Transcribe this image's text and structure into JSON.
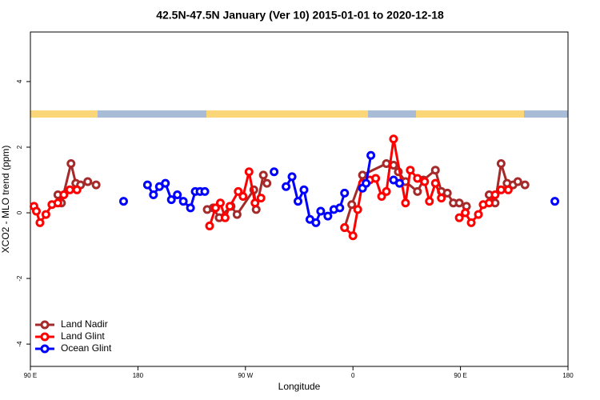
{
  "chart_data": {
    "type": "line",
    "title": "42.5N-47.5N January (Ver 10)   2015-01-01 to 2020-12-18",
    "xlabel": "Longitude",
    "ylabel": "XCO2 - MLO trend (ppm)",
    "xlim": [
      90,
      540
    ],
    "ylim": [
      -4.68,
      5.51
    ],
    "xticks": [
      {
        "value": 90,
        "label": "90 E"
      },
      180,
      {
        "value": 270,
        "label": "90 W"
      },
      {
        "value": 360,
        "label": "0"
      },
      {
        "value": 450,
        "label": "90 E"
      },
      {
        "value": 540,
        "label": "180"
      }
    ],
    "yticks": [
      -4,
      -2,
      0,
      2,
      4
    ],
    "legend": "bottom-left",
    "series": [
      {
        "name": "Land Nadir",
        "color": "#a52a2a",
        "x": [
          113,
          116,
          124,
          128,
          132,
          138,
          145,
          null,
          238,
          243,
          248,
          258,
          263,
          277,
          279,
          285,
          288,
          null,
          353,
          359,
          368,
          388,
          394,
          398,
          404,
          414,
          419,
          429,
          434,
          439,
          444,
          449,
          455,
          null,
          474,
          479,
          484,
          489,
          494,
          498,
          504
        ],
        "values": [
          0.55,
          0.3,
          1.5,
          0.9,
          0.85,
          0.95,
          0.85,
          null,
          0.1,
          0.15,
          -0.15,
          0.2,
          -0.05,
          0.7,
          0.1,
          1.15,
          0.9,
          null,
          -0.45,
          0.25,
          1.15,
          1.5,
          1.45,
          1.25,
          0.95,
          0.65,
          1.0,
          1.3,
          0.65,
          0.6,
          0.3,
          0.3,
          0.2,
          null,
          0.55,
          0.3,
          1.5,
          0.9,
          0.85,
          0.95,
          0.85
        ]
      },
      {
        "name": "Land Glint",
        "color": "#ff0000",
        "x": [
          93,
          95,
          98,
          103,
          108,
          113,
          118,
          123,
          129,
          null,
          240,
          245,
          249,
          253,
          257,
          264,
          268,
          273,
          278,
          283,
          null,
          353,
          360,
          364,
          368,
          374,
          379,
          384,
          388,
          394,
          404,
          408,
          414,
          420,
          424,
          429,
          434,
          null,
          449,
          454,
          459,
          465,
          469,
          474,
          479,
          484,
          490
        ],
        "values": [
          0.2,
          0.05,
          -0.3,
          -0.05,
          0.25,
          0.3,
          0.55,
          0.7,
          0.7,
          null,
          -0.4,
          0.15,
          0.3,
          -0.15,
          0.2,
          0.65,
          0.5,
          1.25,
          0.3,
          0.45,
          null,
          -0.45,
          -0.7,
          0.1,
          0.9,
          1.0,
          1.05,
          0.5,
          0.65,
          2.25,
          0.3,
          1.3,
          1.05,
          0.95,
          0.35,
          0.9,
          0.45,
          null,
          -0.15,
          0.0,
          -0.3,
          -0.05,
          0.25,
          0.3,
          0.55,
          0.7,
          0.7
        ]
      },
      {
        "name": "Ocean Glint",
        "color": "#0000ff",
        "x": [
          168,
          null,
          188,
          193,
          198,
          203,
          208,
          213,
          218,
          224,
          228,
          232,
          236,
          null,
          294,
          null,
          304,
          309,
          314,
          319,
          324,
          329,
          333,
          339,
          344,
          349,
          353,
          null,
          368,
          371,
          375,
          null,
          394,
          399,
          null,
          529
        ],
        "values": [
          0.35,
          null,
          0.85,
          0.55,
          0.8,
          0.9,
          0.4,
          0.55,
          0.35,
          0.15,
          0.65,
          0.65,
          0.65,
          null,
          1.25,
          null,
          0.8,
          1.1,
          0.35,
          0.7,
          -0.2,
          -0.3,
          0.05,
          -0.1,
          0.1,
          0.15,
          0.6,
          null,
          0.75,
          0.9,
          1.75,
          null,
          1.0,
          0.9,
          null,
          0.35
        ]
      }
    ]
  }
}
